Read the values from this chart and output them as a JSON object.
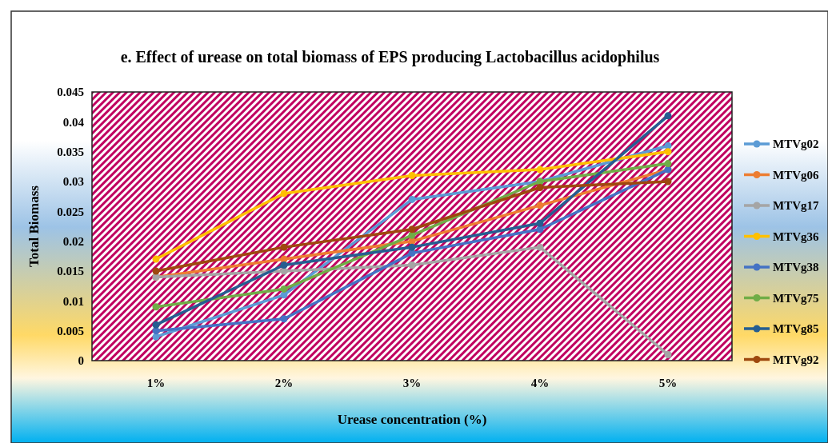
{
  "chart_data": {
    "type": "line",
    "title": "e. Effect of urease on total biomass of EPS producing Lactobacillus acidophilus",
    "xlabel": "Urease concentration (%)",
    "ylabel": "Total Biomass",
    "categories": [
      "1%",
      "2%",
      "3%",
      "4%",
      "5%"
    ],
    "ylim": [
      0,
      0.045
    ],
    "yticks": [
      {
        "value": 0,
        "label": "0"
      },
      0.005,
      0.01,
      0.015,
      0.02,
      0.025,
      0.03,
      0.035,
      0.04,
      0.045
    ],
    "marker": "circle",
    "legend": "right",
    "grid": false,
    "series": [
      {
        "name": "MTVg02",
        "color": "#5b9bd5",
        "values": [
          0.004,
          0.011,
          0.027,
          0.03,
          0.036
        ]
      },
      {
        "name": "MTVg06",
        "color": "#ed7d31",
        "values": [
          0.014,
          0.017,
          0.02,
          0.026,
          0.032
        ]
      },
      {
        "name": "MTVg17",
        "color": "#a5a5a5",
        "values": [
          0.014,
          0.015,
          0.016,
          0.019,
          0.001
        ]
      },
      {
        "name": "MTVg36",
        "color": "#ffc000",
        "values": [
          0.017,
          0.028,
          0.031,
          0.032,
          0.035
        ]
      },
      {
        "name": "MTVg38",
        "color": "#4472c4",
        "values": [
          0.005,
          0.007,
          0.018,
          0.022,
          0.032
        ]
      },
      {
        "name": "MTVg75",
        "color": "#70ad47",
        "values": [
          0.009,
          0.012,
          0.021,
          0.03,
          0.033
        ]
      },
      {
        "name": "MTVg85",
        "color": "#255e91",
        "values": [
          0.006,
          0.016,
          0.019,
          0.023,
          0.041
        ]
      },
      {
        "name": "MTVg92",
        "color": "#9e480e",
        "values": [
          0.015,
          0.019,
          0.022,
          0.029,
          0.03
        ]
      }
    ]
  }
}
